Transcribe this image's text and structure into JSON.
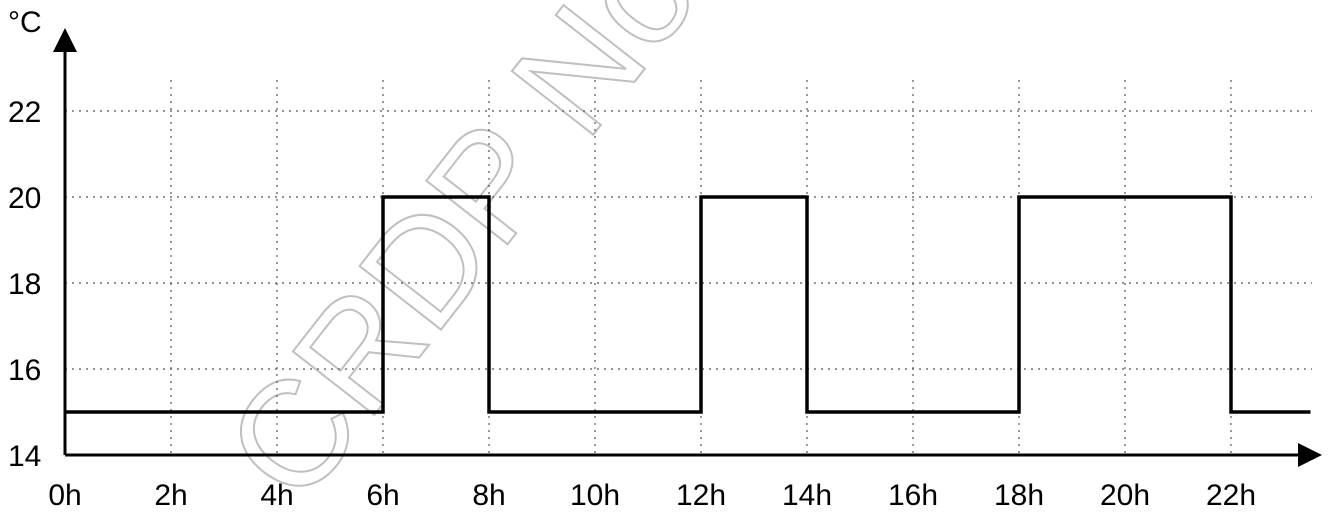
{
  "chart_data": {
    "type": "line",
    "step": true,
    "ylabel": "°C",
    "xlabel": "",
    "xlim": [
      0,
      23.5
    ],
    "ylim": [
      14,
      22
    ],
    "x_ticks": [
      0,
      2,
      4,
      6,
      8,
      10,
      12,
      14,
      16,
      18,
      20,
      22
    ],
    "x_tick_labels": [
      "0h",
      "2h",
      "4h",
      "6h",
      "8h",
      "10h",
      "12h",
      "14h",
      "16h",
      "18h",
      "20h",
      "22h"
    ],
    "y_ticks": [
      14,
      16,
      18,
      20,
      22
    ],
    "y_tick_labels": [
      "14",
      "16",
      "18",
      "20",
      "22"
    ],
    "grid": true,
    "series": [
      {
        "x": [
          0,
          6,
          6,
          8,
          8,
          12,
          12,
          14,
          14,
          18,
          18,
          22,
          22,
          23.5
        ],
        "values": [
          15,
          15,
          20,
          20,
          15,
          15,
          20,
          20,
          15,
          15,
          20,
          20,
          15,
          15
        ]
      }
    ]
  },
  "watermark": {
    "text": "CRDP Nord Pas-de-Calais"
  }
}
